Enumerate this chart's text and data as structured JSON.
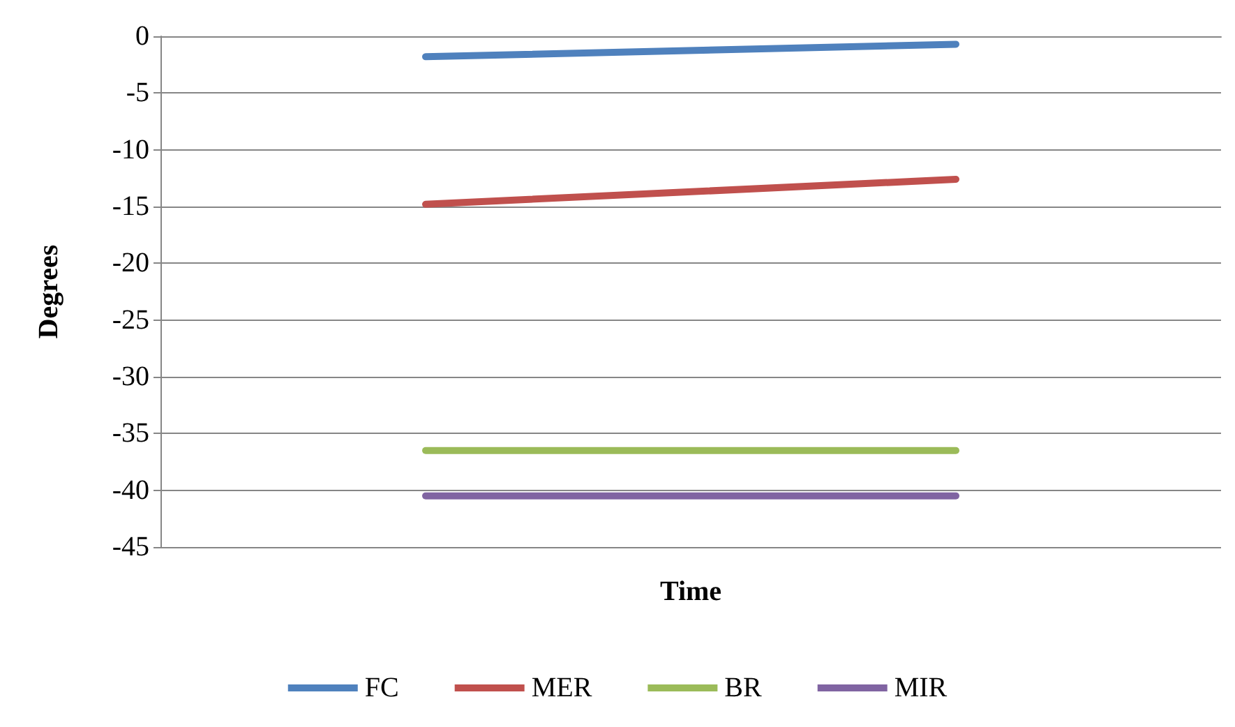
{
  "chart_data": {
    "type": "line",
    "xlabel": "Time",
    "ylabel": "Degrees",
    "categories": [
      null,
      null
    ],
    "series": [
      {
        "name": "FC",
        "color": "#4f81bd",
        "values": [
          -1.8,
          -0.7
        ]
      },
      {
        "name": "MER",
        "color": "#c0504d",
        "values": [
          -14.8,
          -12.6
        ]
      },
      {
        "name": "BR",
        "color": "#9bbb59",
        "values": [
          -36.5,
          -36.5
        ]
      },
      {
        "name": "MIR",
        "color": "#8064a2",
        "values": [
          -40.5,
          -40.5
        ]
      }
    ],
    "ylim": [
      -45,
      0
    ],
    "yticks": [
      -45,
      -40,
      -35,
      -30,
      -25,
      -20,
      -15,
      -10,
      -5,
      0
    ],
    "grid": "y",
    "legend": "bottom",
    "tick_labels": "y",
    "marker": "none",
    "line_style": "solid"
  }
}
